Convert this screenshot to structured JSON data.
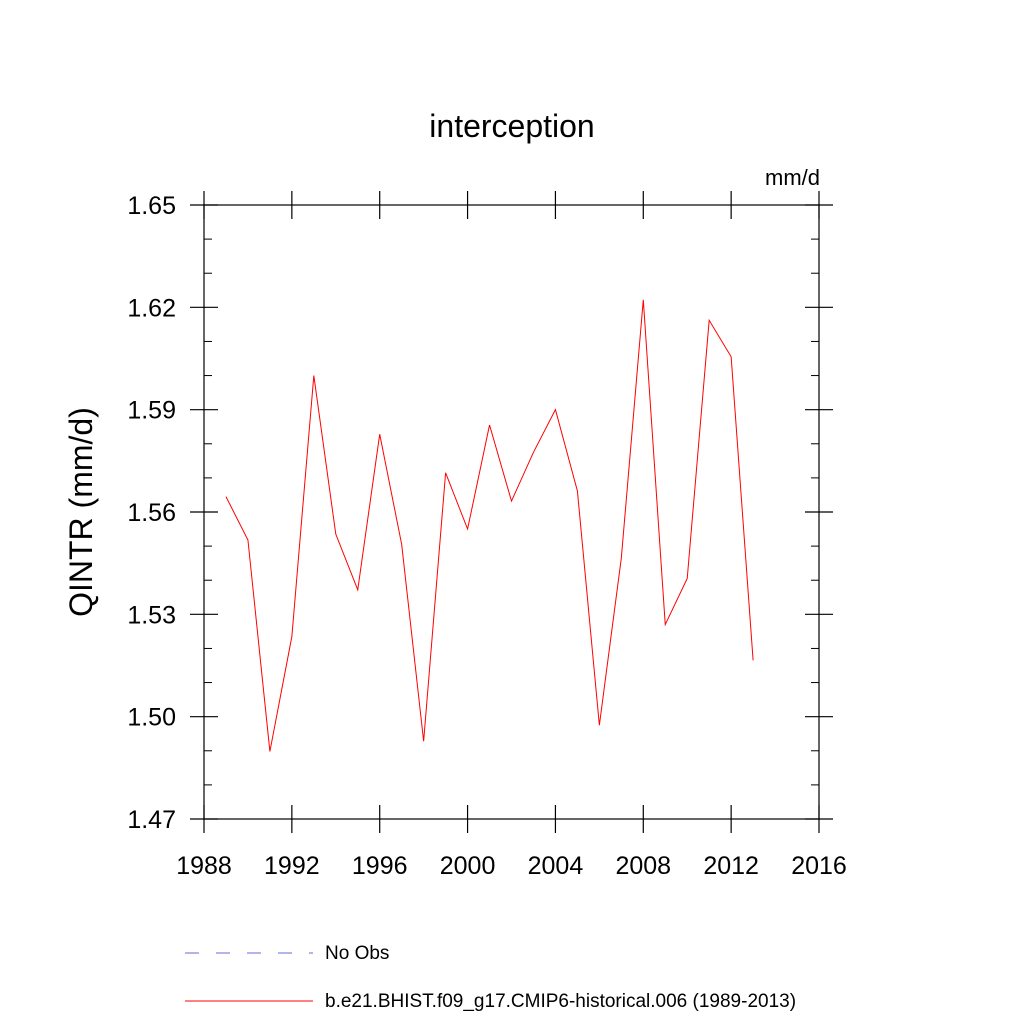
{
  "colors": {
    "series": "#ff0000",
    "obs": "#6a6ad8",
    "axis": "#000000"
  },
  "chart_data": {
    "type": "line",
    "title": "interception",
    "ylabel": "QINTR  (mm/d)",
    "units": "mm/d",
    "xlim": [
      1988,
      2016
    ],
    "ylim": [
      1.47,
      1.65
    ],
    "xticks": [
      "1988",
      "1992",
      "1996",
      "2000",
      "2004",
      "2008",
      "2012",
      "2016"
    ],
    "yticks": [
      "1.47",
      "1.50",
      "1.53",
      "1.56",
      "1.59",
      "1.62",
      "1.65"
    ],
    "grid": false,
    "legend_position": "bottom",
    "series": [
      {
        "name": "b.e21.BHIST.f09_g17.CMIP6-historical.006 (1989-2013)",
        "style": "solid",
        "x": [
          1989,
          1990,
          1991,
          1992,
          1993,
          1994,
          1995,
          1996,
          1997,
          1998,
          1999,
          2000,
          2001,
          2002,
          2003,
          2004,
          2005,
          2006,
          2007,
          2008,
          2009,
          2010,
          2011,
          2012,
          2013
        ],
        "y": [
          1.5645,
          1.5518,
          1.4898,
          1.5235,
          1.6,
          1.5535,
          1.5372,
          1.5828,
          1.5505,
          1.4928,
          1.5715,
          1.555,
          1.5855,
          1.5632,
          1.5775,
          1.59,
          1.5662,
          1.4975,
          1.5465,
          1.6222,
          1.527,
          1.5405,
          1.6162,
          1.6055,
          1.5165
        ]
      }
    ],
    "obs": {
      "name": "No Obs",
      "style": "dashed"
    }
  }
}
